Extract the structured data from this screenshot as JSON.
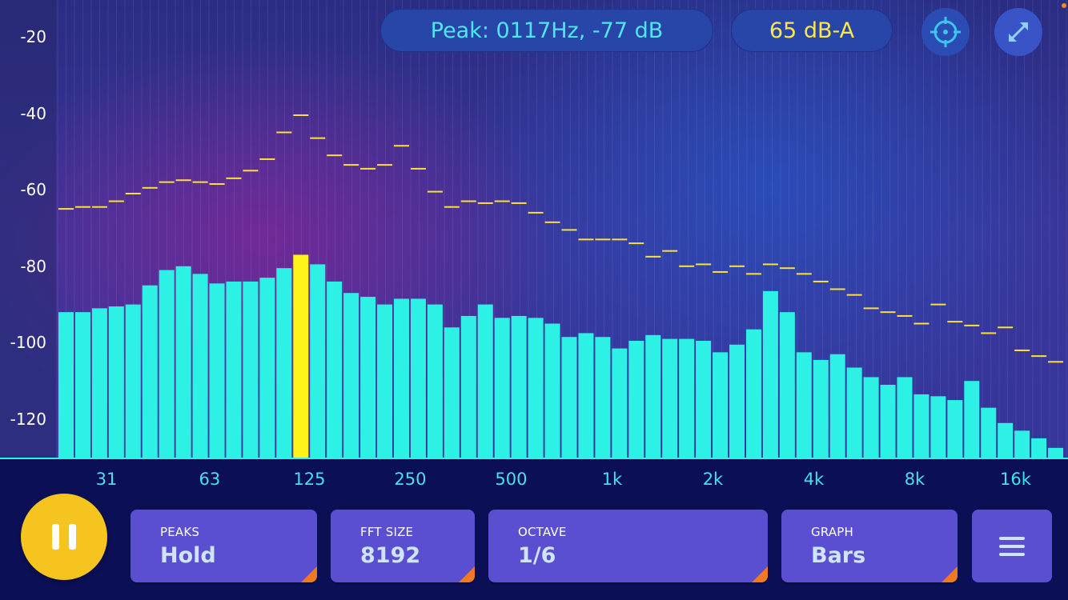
{
  "header": {
    "peak_readout": "Peak: 0117Hz, -77 dB",
    "level_readout": "65 dB-A",
    "target_button": "crosshair-icon",
    "resize_button": "fullscreen-icon"
  },
  "colors": {
    "bar": "#2ef1e6",
    "highlight_bar": "#fff31a",
    "peak_marker": "#ffe03a",
    "axis_text": "#ffffff",
    "freq_text": "#43e0ef",
    "button_bg": "#5a4fd0",
    "pause_bg": "#f6c41f",
    "accent_corner": "#f07a20"
  },
  "controls": {
    "pause_button": "pause-icon",
    "peaks": {
      "label": "PEAKS",
      "value": "Hold"
    },
    "fft_size": {
      "label": "FFT SIZE",
      "value": "8192"
    },
    "octave": {
      "label": "OCTAVE",
      "value": "1/6"
    },
    "graph": {
      "label": "GRAPH",
      "value": "Bars"
    },
    "menu_button": "menu-icon"
  },
  "chart_data": {
    "type": "bar",
    "x_scale": "log",
    "xlim_hz": [
      22,
      22000
    ],
    "ylim_db": [
      -130,
      -15
    ],
    "y_ticks": [
      "-20",
      "-40",
      "-60",
      "-80",
      "-100",
      "-120"
    ],
    "y_tick_values": [
      -20,
      -40,
      -60,
      -80,
      -100,
      -120
    ],
    "x_ticks": [
      "31",
      "63",
      "125",
      "250",
      "500",
      "1k",
      "2k",
      "4k",
      "8k",
      "16k"
    ],
    "x_tick_values": [
      31,
      63,
      125,
      250,
      500,
      1000,
      2000,
      4000,
      8000,
      16000
    ],
    "highlight_band_index": 14,
    "series": [
      {
        "values": [
          -92,
          -92,
          -91,
          -90.5,
          -90,
          -85,
          -81,
          -80,
          -82,
          -84.5,
          -84,
          -84,
          -83,
          -80.5,
          -77,
          -79.5,
          -84,
          -87,
          -88,
          -90,
          -88.5,
          -88.5,
          -90,
          -96,
          -93,
          -90,
          -93.5,
          -93,
          -93.5,
          -95,
          -98.5,
          -97.5,
          -98.5,
          -101.5,
          -99.5,
          -98,
          -99,
          -99,
          -99.5,
          -102.5,
          -100.5,
          -96.5,
          -86.5,
          -92,
          -102.5,
          -104.5,
          -103,
          -106.5,
          -109,
          -111,
          -109,
          -113.5,
          -114,
          -115,
          -110,
          -117,
          -121,
          -123,
          -125,
          -127.5
        ]
      },
      {
        "values": [
          -65,
          -64.5,
          -64.5,
          -63,
          -61,
          -59.5,
          -58,
          -57.5,
          -58,
          -58.5,
          -57,
          -55,
          -52,
          -45,
          -40.5,
          -46.5,
          -51,
          -53.5,
          -54.5,
          -53.5,
          -48.5,
          -54.5,
          -60.5,
          -64.5,
          -63,
          -63.5,
          -63,
          -63.5,
          -66,
          -68.5,
          -70.5,
          -73,
          -73,
          -73,
          -74,
          -77.5,
          -76,
          -80,
          -79.5,
          -81.5,
          -80,
          -82,
          -79.5,
          -80.5,
          -82,
          -84,
          -86,
          -87.5,
          -91,
          -92,
          -93,
          -95,
          -90,
          -94.5,
          -95.5,
          -97.5,
          -96,
          -102,
          -103.5,
          -105
        ]
      }
    ]
  }
}
